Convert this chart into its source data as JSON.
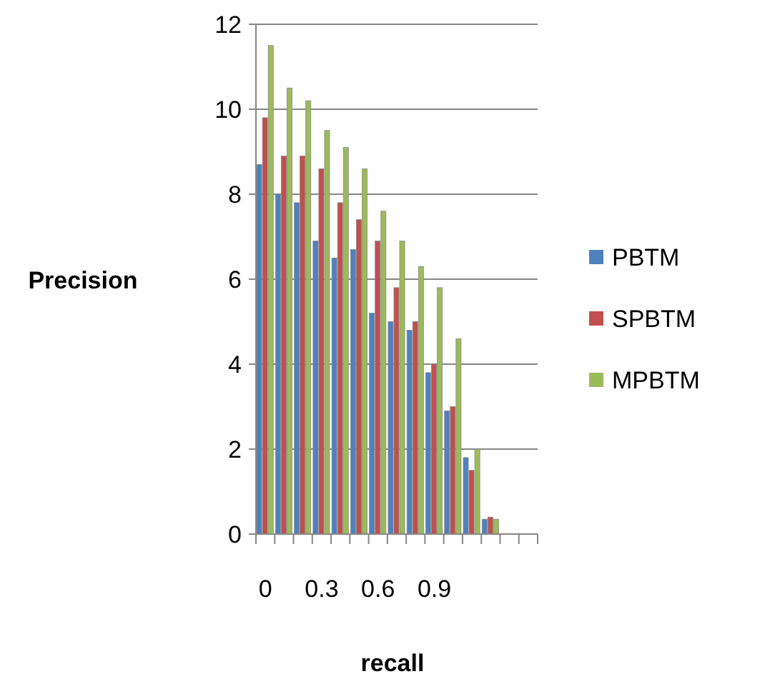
{
  "chart_data": {
    "type": "bar",
    "xlabel": "recall",
    "ylabel": "Precision",
    "categories": [
      "0",
      null,
      null,
      "0.3",
      null,
      null,
      "0.6",
      null,
      null,
      "0.9",
      null,
      null,
      null,
      null,
      null
    ],
    "series": [
      {
        "name": "PBTM",
        "color": "#4f81bd",
        "values": [
          8.7,
          8.0,
          7.8,
          6.9,
          6.5,
          6.7,
          5.2,
          5.0,
          4.8,
          3.8,
          2.9,
          1.8,
          0.35,
          null,
          null
        ]
      },
      {
        "name": "SPBTM",
        "color": "#c0504d",
        "values": [
          9.8,
          8.9,
          8.9,
          8.6,
          7.8,
          7.4,
          6.9,
          5.8,
          5.0,
          4.0,
          3.0,
          1.5,
          0.4,
          null,
          null
        ]
      },
      {
        "name": "MPBTM",
        "color": "#9bbb59",
        "values": [
          11.5,
          10.5,
          10.2,
          9.5,
          9.1,
          8.6,
          7.6,
          6.9,
          6.3,
          5.8,
          4.6,
          2.0,
          0.35,
          null,
          null
        ]
      }
    ],
    "ylim": [
      0,
      12
    ],
    "yticks": [
      0,
      2,
      4,
      6,
      8,
      10,
      12
    ],
    "grid": "y",
    "legend": "right"
  }
}
